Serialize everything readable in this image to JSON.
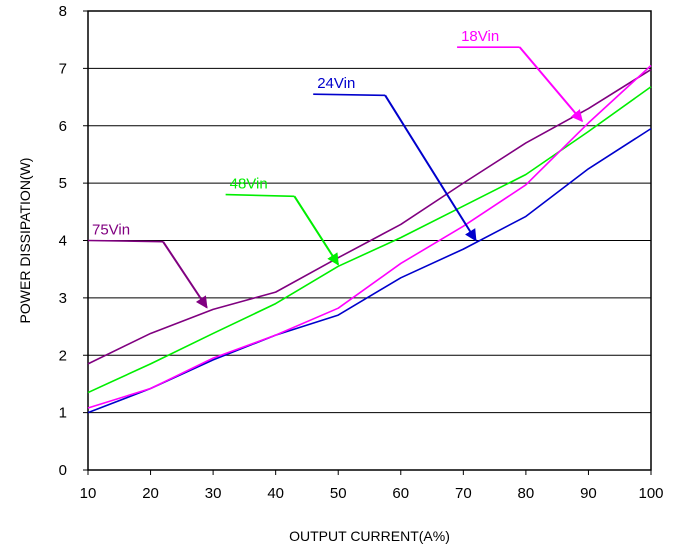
{
  "chart_data": {
    "type": "line",
    "title": "",
    "xlabel": "OUTPUT CURRENT(A%)",
    "ylabel": "POWER DISSIPATION(W)",
    "x": [
      10,
      20,
      30,
      40,
      50,
      60,
      70,
      80,
      90,
      100
    ],
    "xlim": [
      10,
      100
    ],
    "ylim": [
      0,
      8
    ],
    "xticks": [
      "10",
      "20",
      "30",
      "40",
      "50",
      "60",
      "70",
      "80",
      "90",
      "100"
    ],
    "yticks": [
      "0",
      "1",
      "2",
      "3",
      "4",
      "5",
      "6",
      "7",
      "8"
    ],
    "grid": "horizontal",
    "legend": "inline-labels-with-arrows",
    "series": [
      {
        "name": "75Vin",
        "color": "#800080",
        "values": [
          1.85,
          2.38,
          2.8,
          3.1,
          3.7,
          4.28,
          5.0,
          5.7,
          6.3,
          6.98
        ],
        "label_at": [
          10,
          4.0
        ],
        "arrow_from": [
          22,
          3.98
        ],
        "arrow_to": [
          29,
          2.83
        ]
      },
      {
        "name": "48Vin",
        "color": "#00ee00",
        "values": [
          1.35,
          1.85,
          2.38,
          2.9,
          3.55,
          4.05,
          4.6,
          5.15,
          5.9,
          6.68
        ],
        "label_at": [
          32,
          4.8
        ],
        "arrow_from": [
          43,
          4.77
        ],
        "arrow_to": [
          50,
          3.58
        ]
      },
      {
        "name": "24Vin",
        "color": "#0000cc",
        "values": [
          1.0,
          1.42,
          1.92,
          2.35,
          2.7,
          3.35,
          3.85,
          4.42,
          5.25,
          5.95
        ],
        "label_at": [
          46,
          6.55
        ],
        "arrow_from": [
          57.5,
          6.53
        ],
        "arrow_to": [
          72,
          4.0
        ]
      },
      {
        "name": "18Vin",
        "color": "#ff00ff",
        "values": [
          1.08,
          1.42,
          1.95,
          2.35,
          2.82,
          3.6,
          4.25,
          4.97,
          6.05,
          7.05
        ],
        "label_at": [
          69,
          7.37
        ],
        "arrow_from": [
          79,
          7.37
        ],
        "arrow_to": [
          89,
          6.08
        ]
      }
    ]
  }
}
